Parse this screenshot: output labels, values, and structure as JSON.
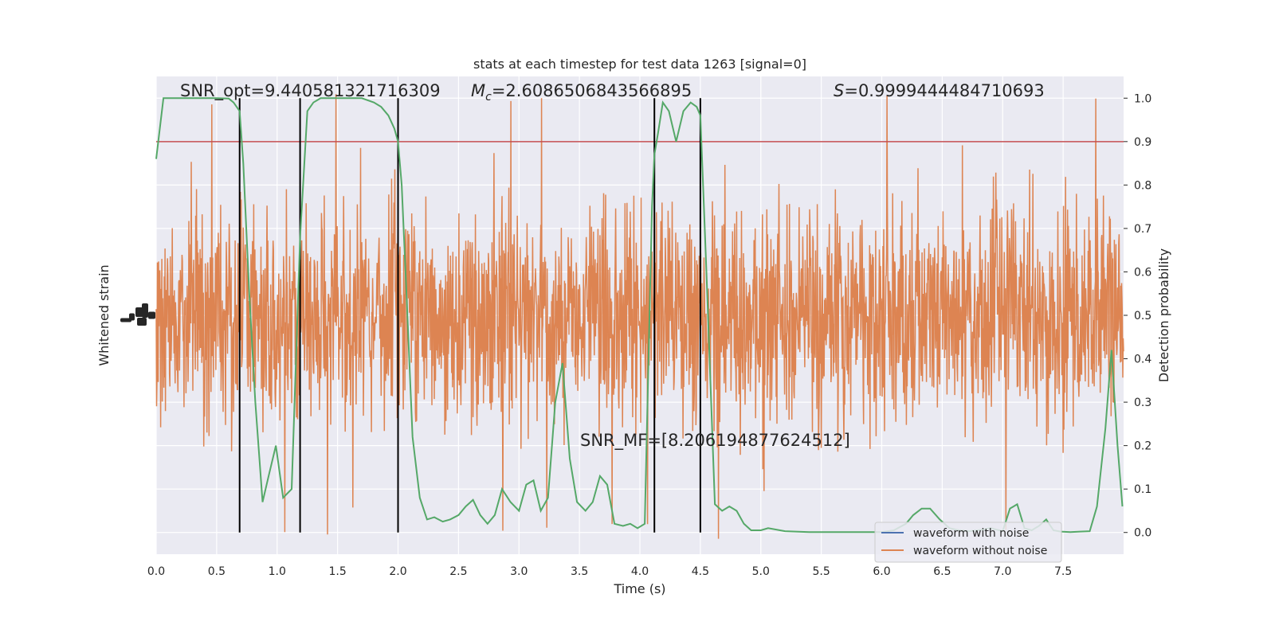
{
  "chart_data": {
    "type": "line",
    "title": "stats at each timestep for test data 1263 [signal=0]",
    "xlabel": "Time (s)",
    "ylabel_left": "Whitened strain",
    "ylabel_right": "Detection probability",
    "xlim": [
      0,
      8
    ],
    "ylim_right": [
      -0.05,
      1.05
    ],
    "x_ticks": [
      "0.0",
      "0.5",
      "1.0",
      "1.5",
      "2.0",
      "2.5",
      "3.0",
      "3.5",
      "4.0",
      "4.5",
      "5.0",
      "5.5",
      "6.0",
      "6.5",
      "7.0",
      "7.5"
    ],
    "y_ticks_right": [
      "0.0",
      "0.1",
      "0.2",
      "0.3",
      "0.4",
      "0.5",
      "0.6",
      "0.7",
      "0.8",
      "0.9",
      "1.0"
    ],
    "threshold": 0.9,
    "threshold_color": "#c44e52",
    "vlines": [
      0.69,
      1.19,
      2.0,
      4.12,
      4.5
    ],
    "annotations": {
      "snr_opt": "SNR_opt=9.440581321716309",
      "mc_symbol": "M",
      "mc_sub": "c",
      "mc_value": "=2.6086506843566895",
      "s_symbol": "S",
      "s_value": "=0.9999444484710693",
      "snr_mf": "SNR_MF=[8.206194877624512]"
    },
    "legend": [
      {
        "label": "waveform with noise",
        "color": "#4c72b0"
      },
      {
        "label": "waveform without noise",
        "color": "#dd8452"
      }
    ],
    "noise_color": "#dd8452",
    "probability_color": "#55a868",
    "probability": {
      "x": [
        0.0,
        0.06,
        0.12,
        0.2,
        0.3,
        0.4,
        0.5,
        0.6,
        0.64,
        0.69,
        0.72,
        0.77,
        0.82,
        0.88,
        0.93,
        0.99,
        1.05,
        1.12,
        1.19,
        1.25,
        1.3,
        1.36,
        1.42,
        1.5,
        1.6,
        1.7,
        1.8,
        1.86,
        1.92,
        1.97,
        2.0,
        2.03,
        2.07,
        2.12,
        2.18,
        2.24,
        2.3,
        2.37,
        2.43,
        2.5,
        2.56,
        2.62,
        2.68,
        2.74,
        2.8,
        2.86,
        2.93,
        3.0,
        3.06,
        3.12,
        3.18,
        3.24,
        3.3,
        3.36,
        3.42,
        3.48,
        3.55,
        3.61,
        3.67,
        3.73,
        3.79,
        3.86,
        3.92,
        3.98,
        4.04,
        4.1,
        4.12,
        4.15,
        4.19,
        4.24,
        4.3,
        4.36,
        4.42,
        4.47,
        4.5,
        4.55,
        4.62,
        4.68,
        4.74,
        4.8,
        4.86,
        4.92,
        5.0,
        5.06,
        5.2,
        5.4,
        5.6,
        5.8,
        6.0,
        6.1,
        6.2,
        6.26,
        6.33,
        6.4,
        6.48,
        6.56,
        6.64,
        6.72,
        6.8,
        6.9,
        7.0,
        7.06,
        7.12,
        7.18,
        7.24,
        7.3,
        7.36,
        7.42,
        7.48,
        7.56,
        7.64,
        7.72,
        7.78,
        7.85,
        7.9,
        7.95,
        7.99
      ],
      "y": [
        0.86,
        1.0,
        1.0,
        1.0,
        1.0,
        1.0,
        1.0,
        0.999,
        0.99,
        0.97,
        0.85,
        0.55,
        0.3,
        0.07,
        0.13,
        0.2,
        0.08,
        0.1,
        0.68,
        0.97,
        0.99,
        1.0,
        1.0,
        1.0,
        1.0,
        1.0,
        0.99,
        0.98,
        0.96,
        0.93,
        0.9,
        0.8,
        0.55,
        0.22,
        0.08,
        0.03,
        0.035,
        0.025,
        0.03,
        0.04,
        0.06,
        0.075,
        0.04,
        0.02,
        0.04,
        0.1,
        0.07,
        0.05,
        0.11,
        0.12,
        0.05,
        0.08,
        0.3,
        0.39,
        0.17,
        0.07,
        0.05,
        0.07,
        0.13,
        0.11,
        0.02,
        0.015,
        0.02,
        0.01,
        0.02,
        0.75,
        0.87,
        0.92,
        0.99,
        0.97,
        0.9,
        0.97,
        0.99,
        0.98,
        0.96,
        0.6,
        0.065,
        0.05,
        0.06,
        0.05,
        0.02,
        0.005,
        0.005,
        0.01,
        0.003,
        0.001,
        0.001,
        0.001,
        0.001,
        0.005,
        0.02,
        0.04,
        0.055,
        0.055,
        0.03,
        0.01,
        0.005,
        0.003,
        0.005,
        0.01,
        0.003,
        0.055,
        0.065,
        0.01,
        0.005,
        0.015,
        0.03,
        0.005,
        0.002,
        0.001,
        0.002,
        0.003,
        0.06,
        0.24,
        0.42,
        0.2,
        0.06
      ]
    }
  }
}
